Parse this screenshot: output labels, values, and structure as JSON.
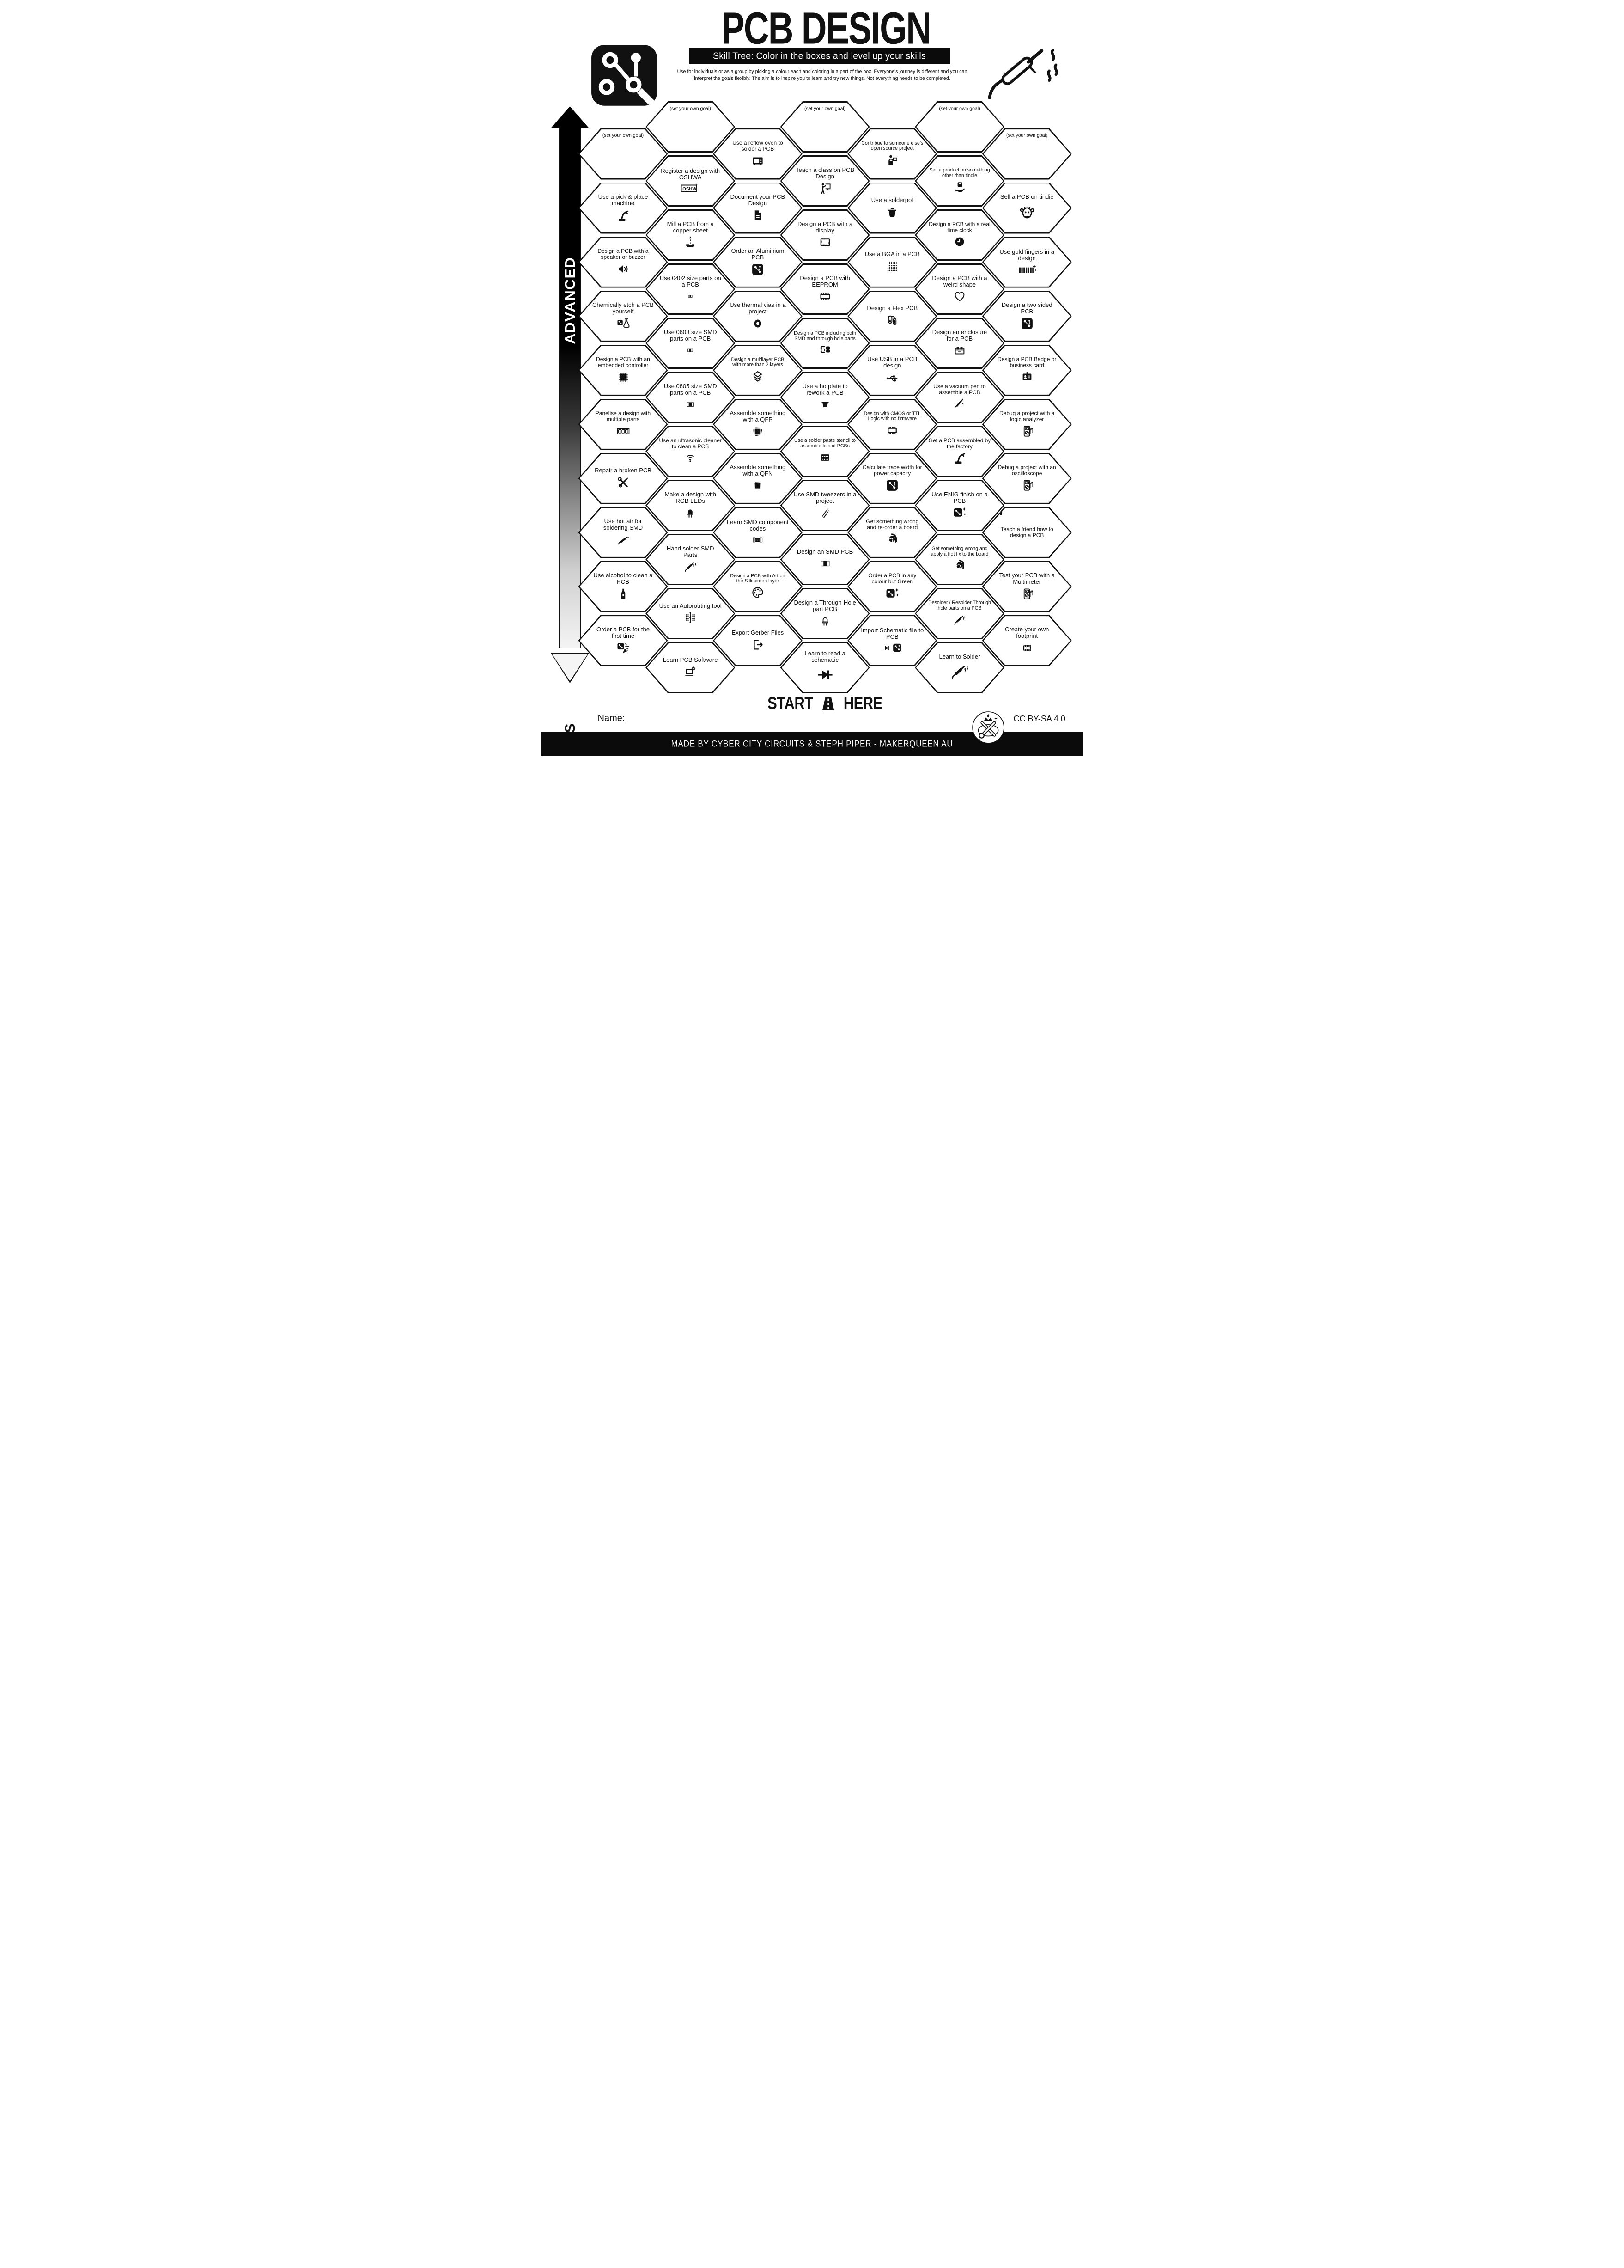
{
  "header": {
    "title": "PCB DESIGN",
    "subtitle": "Skill Tree:  Color in the boxes and level up your skills",
    "description": "Use for individuals or as a group by picking a colour each and coloring in a part of the box.  Everyone's journey is different and you can interpret the goals flexibly.  The aim is to inspire you to learn and try new things. Not everything needs to be completed."
  },
  "axis": {
    "advanced": "ADVANCED",
    "basics": "BASICS"
  },
  "start": {
    "start_label": "START",
    "here_label": "HERE"
  },
  "footer": {
    "name_label": "Name:",
    "license": "CC BY-SA 4.0",
    "credit": "MADE BY CYBER CITY CIRCUITS & STEPH PIPER  -  MAKERQUEEN AU"
  },
  "goal_placeholder": "(set your own goal)",
  "colors": {
    "ink": "#111111",
    "paper": "#ffffff"
  },
  "hexes": [
    {
      "c": 0,
      "r": 0,
      "goal": true
    },
    {
      "c": 0,
      "r": 1,
      "label": "Use a pick & place machine",
      "icon": "robot-arm"
    },
    {
      "c": 0,
      "r": 2,
      "label": "Design a PCB with a speaker or buzzer",
      "icon": "speaker"
    },
    {
      "c": 0,
      "r": 3,
      "label": "Chemically etch a PCB yourself",
      "icon": "etch-flask"
    },
    {
      "c": 0,
      "r": 4,
      "label": "Design a PCB with an embedded controller",
      "icon": "mcu"
    },
    {
      "c": 0,
      "r": 5,
      "label": "Panelise a design with multiple parts",
      "icon": "panel"
    },
    {
      "c": 0,
      "r": 6,
      "label": "Repair a broken PCB",
      "icon": "tools"
    },
    {
      "c": 0,
      "r": 7,
      "label": "Use hot air for soldering SMD",
      "icon": "hot-air"
    },
    {
      "c": 0,
      "r": 8,
      "label": "Use alcohol to clean a PCB",
      "icon": "bottle"
    },
    {
      "c": 0,
      "r": 9,
      "label": "Order a PCB for the first time",
      "icon": "pcb-party"
    },
    {
      "c": 1,
      "r": 0,
      "goal": true
    },
    {
      "c": 1,
      "r": 1,
      "label": "Register a design with OSHWA",
      "icon": "oshwa",
      "iconClass": "wide"
    },
    {
      "c": 1,
      "r": 2,
      "label": "Mill a PCB from a copper sheet",
      "icon": "mill"
    },
    {
      "c": 1,
      "r": 3,
      "label": "Use 0402 size parts on a PCB",
      "icon": "res-0402"
    },
    {
      "c": 1,
      "r": 4,
      "label": "Use 0603 size SMD parts on a PCB",
      "icon": "res-0603"
    },
    {
      "c": 1,
      "r": 5,
      "label": "Use 0805 size SMD parts on a PCB",
      "icon": "res-0805"
    },
    {
      "c": 1,
      "r": 6,
      "label": "Use an ultrasonic cleaner to clean a PCB",
      "icon": "ultrasonic"
    },
    {
      "c": 1,
      "r": 7,
      "label": "Make a design with RGB LEDs",
      "icon": "led"
    },
    {
      "c": 1,
      "r": 8,
      "label": "Hand solder SMD Parts",
      "icon": "iron"
    },
    {
      "c": 1,
      "r": 9,
      "label": "Use an Autorouting tool",
      "icon": "autoroute"
    },
    {
      "c": 1,
      "r": 10,
      "label": "Learn PCB Software",
      "icon": "laptop-gear"
    },
    {
      "c": 2,
      "r": 0,
      "label": "Use a reflow oven to solder a PCB",
      "icon": "oven"
    },
    {
      "c": 2,
      "r": 1,
      "label": "Document your PCB Design",
      "icon": "document"
    },
    {
      "c": 2,
      "r": 2,
      "label": "Order an Aluminium PCB",
      "icon": "pcb"
    },
    {
      "c": 2,
      "r": 3,
      "label": "Use thermal vias in a project",
      "icon": "via"
    },
    {
      "c": 2,
      "r": 4,
      "label": "Design a multilayer PCB with more than 2 layers",
      "icon": "layers"
    },
    {
      "c": 2,
      "r": 5,
      "label": "Assemble something  with a QFP",
      "icon": "qfp"
    },
    {
      "c": 2,
      "r": 6,
      "label": "Assemble something  with a QFN",
      "icon": "qfn"
    },
    {
      "c": 2,
      "r": 7,
      "label": "Learn SMD component codes",
      "icon": "res-331",
      "iconClass": "wide"
    },
    {
      "c": 2,
      "r": 8,
      "label": "Design a PCB with Art on the Silkscreen layer",
      "icon": "palette"
    },
    {
      "c": 2,
      "r": 9,
      "label": "Export Gerber Files",
      "icon": "export"
    },
    {
      "c": 3,
      "r": 0,
      "goal": true
    },
    {
      "c": 3,
      "r": 1,
      "label": "Teach a class on PCB Design",
      "icon": "teacher"
    },
    {
      "c": 3,
      "r": 2,
      "label": "Design a PCB with a display",
      "icon": "display"
    },
    {
      "c": 3,
      "r": 3,
      "label": "Design a PCB with EEPROM",
      "icon": "eeprom"
    },
    {
      "c": 3,
      "r": 4,
      "label": "Design a PCB including both SMD and through hole parts",
      "icon": "dip-smd",
      "iconClass": "wide"
    },
    {
      "c": 3,
      "r": 5,
      "label": "Use a hotplate to rework a PCB",
      "icon": "hotplate"
    },
    {
      "c": 3,
      "r": 6,
      "label": "Use a solder paste stencil to assemble lots of PCBs",
      "icon": "stencil"
    },
    {
      "c": 3,
      "r": 7,
      "label": "Use SMD tweezers in a project",
      "icon": "tweezers"
    },
    {
      "c": 3,
      "r": 8,
      "label": "Design an SMD PCB",
      "icon": "smd-part"
    },
    {
      "c": 3,
      "r": 9,
      "label": "Design a Through-Hole part PCB",
      "icon": "led-outline"
    },
    {
      "c": 3,
      "r": 10,
      "label": "Learn to read a schematic",
      "icon": "diode",
      "iconClass": "lg"
    },
    {
      "c": 4,
      "r": 0,
      "label": "Contribue to someone else's open source project",
      "icon": "contribute"
    },
    {
      "c": 4,
      "r": 1,
      "label": "Use a solderpot",
      "icon": "solderpot"
    },
    {
      "c": 4,
      "r": 2,
      "label": "Use a BGA in a PCB",
      "icon": "bga"
    },
    {
      "c": 4,
      "r": 3,
      "label": "Design a Flex PCB",
      "icon": "flex"
    },
    {
      "c": 4,
      "r": 4,
      "label": "Use USB in a PCB design",
      "icon": "usb"
    },
    {
      "c": 4,
      "r": 5,
      "label": "Design with CMOS or TTL Logic with no firmware",
      "icon": "logic"
    },
    {
      "c": 4,
      "r": 6,
      "label": "Calculate trace width for power capacity",
      "icon": "pcb"
    },
    {
      "c": 4,
      "r": 7,
      "label": "Get something wrong and re-order a board",
      "icon": "facepalm"
    },
    {
      "c": 4,
      "r": 8,
      "label": "Order a PCB in any colour but Green",
      "icon": "pcb-sparkles"
    },
    {
      "c": 4,
      "r": 9,
      "label": "Import Schematic file to PCB",
      "icon": "diode-pcb",
      "iconClass": "wide"
    },
    {
      "c": 5,
      "r": 0,
      "goal": true
    },
    {
      "c": 5,
      "r": 1,
      "label": "Sell a product on something other than tindie",
      "icon": "hand-box"
    },
    {
      "c": 5,
      "r": 2,
      "label": "Design a PCB with a real time clock",
      "icon": "clock"
    },
    {
      "c": 5,
      "r": 3,
      "label": "Design a PCB with a weird shape",
      "icon": "heart"
    },
    {
      "c": 5,
      "r": 4,
      "label": "Design an enclosure for a PCB",
      "icon": "enclosure"
    },
    {
      "c": 5,
      "r": 5,
      "label": "Use a vacuum pen to assemble a PCB",
      "icon": "vacuum-pen"
    },
    {
      "c": 5,
      "r": 6,
      "label": "Get a PCB assembled by the factory",
      "icon": "robot-arm"
    },
    {
      "c": 5,
      "r": 7,
      "label": "Use ENIG finish on a PCB",
      "icon": "pcb-sparkles"
    },
    {
      "c": 5,
      "r": 8,
      "label": "Get something wrong and apply a hot fix to the board",
      "icon": "facepalm"
    },
    {
      "c": 5,
      "r": 9,
      "label": "Desolder / Resolder Through hole parts on a PCB",
      "icon": "iron"
    },
    {
      "c": 5,
      "r": 10,
      "label": "Learn to Solder",
      "icon": "iron",
      "iconClass": "lg"
    },
    {
      "c": 6,
      "r": 0,
      "goal": true
    },
    {
      "c": 6,
      "r": 1,
      "label": "Sell a PCB on tindie",
      "icon": "tindie-dog",
      "iconClass": "lg"
    },
    {
      "c": 6,
      "r": 2,
      "label": "Use gold fingers in a design",
      "icon": "gold-fingers",
      "iconClass": "wide"
    },
    {
      "c": 6,
      "r": 3,
      "label": "Design a two sided PCB",
      "icon": "pcb"
    },
    {
      "c": 6,
      "r": 4,
      "label": "Design a PCB Badge or business card",
      "icon": "id-card"
    },
    {
      "c": 6,
      "r": 5,
      "label": "Debug a project with a logic analyzer",
      "icon": "multimeter"
    },
    {
      "c": 6,
      "r": 6,
      "label": "Debug a project with an oscilloscope",
      "icon": "multimeter"
    },
    {
      "c": 6,
      "r": 7,
      "label": "Teach a friend how to design a PCB",
      "deco": "bow"
    },
    {
      "c": 6,
      "r": 8,
      "label": "Test your PCB with a Multimeter",
      "icon": "multimeter"
    },
    {
      "c": 6,
      "r": 9,
      "label": "Create your own footprint",
      "icon": "footprint"
    }
  ]
}
